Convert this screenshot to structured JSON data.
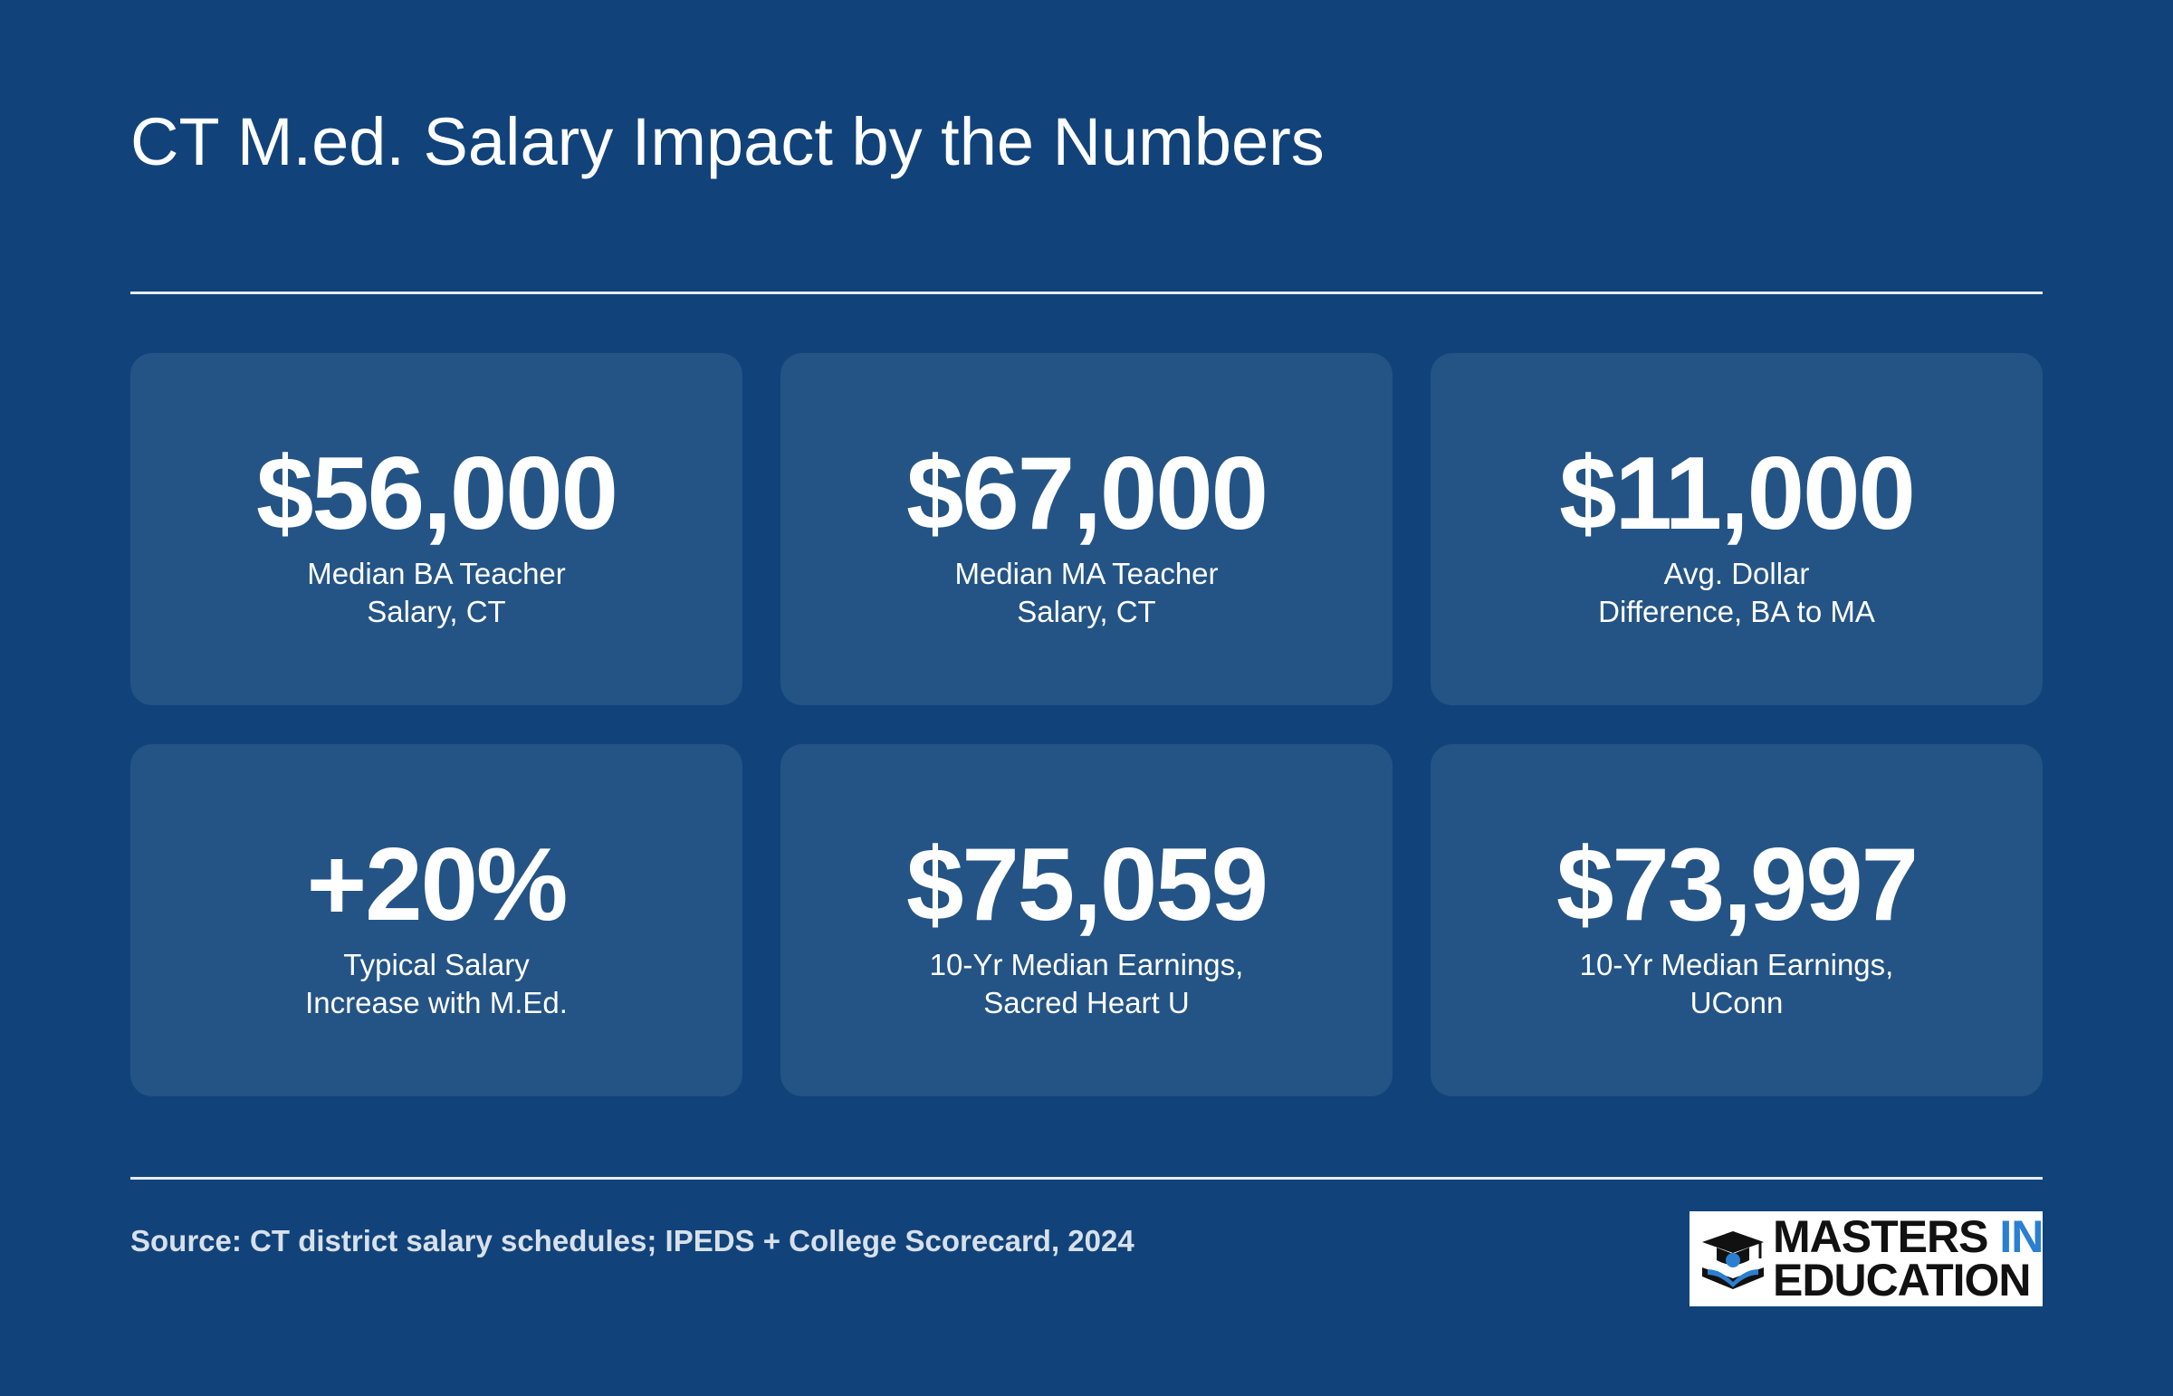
{
  "header": {
    "title": "CT M.ed. Salary Impact by the Numbers"
  },
  "stats": [
    {
      "value": "$56,000",
      "label": [
        "Median BA Teacher",
        "Salary, CT"
      ]
    },
    {
      "value": "$67,000",
      "label": [
        "Median MA Teacher",
        "Salary, CT"
      ]
    },
    {
      "value": "$11,000",
      "label": [
        "Avg. Dollar",
        "Difference, BA to MA"
      ]
    },
    {
      "value": "+20%",
      "label": [
        "Typical Salary",
        "Increase with M.Ed."
      ]
    },
    {
      "value": "$75,059",
      "label": [
        "10-Yr Median Earnings,",
        "Sacred Heart U"
      ]
    },
    {
      "value": "$73,997",
      "label": [
        "10-Yr Median Earnings,",
        "UConn"
      ]
    }
  ],
  "footer": {
    "source": "Source: CT district salary schedules; IPEDS + College Scorecard, 2024",
    "logo": {
      "line1a": "MASTERS",
      "line1b": "IN",
      "line2": "EDUCATION"
    }
  }
}
